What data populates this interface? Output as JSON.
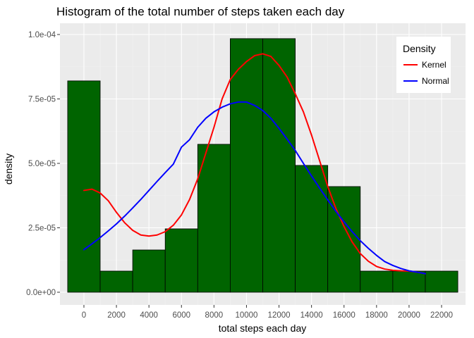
{
  "chart_data": {
    "type": "bar",
    "title": "Histogram of the total number of steps taken each day",
    "xlabel": "total steps each day",
    "ylabel": "density",
    "xlim": [
      -1000,
      23000
    ],
    "ylim": [
      0,
      0.0001
    ],
    "x_ticks": [
      0,
      2000,
      4000,
      6000,
      8000,
      10000,
      12000,
      14000,
      16000,
      18000,
      20000,
      22000
    ],
    "y_ticks": [
      0,
      2.5e-05,
      5e-05,
      7.5e-05,
      0.0001
    ],
    "y_tick_labels": [
      "0.0e+00",
      "2.5e-05",
      "5.0e-05",
      "7.5e-05",
      "1.0e-04"
    ],
    "grid": true,
    "histogram": {
      "bin_edges": [
        -1000,
        1000,
        3000,
        5000,
        7000,
        9000,
        11000,
        13000,
        15000,
        17000,
        19000,
        21000,
        23000
      ],
      "densities": [
        8.2e-05,
        8.2e-06,
        1.64e-05,
        2.46e-05,
        5.74e-05,
        9.84e-05,
        9.84e-05,
        4.92e-05,
        4.1e-05,
        8.2e-06,
        8.2e-06,
        8.2e-06
      ],
      "fill": "#006400",
      "stroke": "#000000"
    },
    "series": [
      {
        "name": "Kernel",
        "color": "#ff0000",
        "x": [
          0,
          500,
          1000,
          1500,
          2000,
          2500,
          3000,
          3500,
          4000,
          4500,
          5000,
          5500,
          6000,
          6500,
          7000,
          7500,
          8000,
          8500,
          9000,
          9500,
          10000,
          10500,
          11000,
          11500,
          12000,
          12500,
          13000,
          13500,
          14000,
          14500,
          15000,
          15500,
          16000,
          16500,
          17000,
          17500,
          18000,
          18500,
          19000,
          19500,
          20000,
          20500,
          21000
        ],
        "y": [
          3.95e-05,
          4e-05,
          3.85e-05,
          3.55e-05,
          3.1e-05,
          2.7e-05,
          2.4e-05,
          2.22e-05,
          2.18e-05,
          2.22e-05,
          2.35e-05,
          2.6e-05,
          3e-05,
          3.6e-05,
          4.4e-05,
          5.4e-05,
          6.4e-05,
          7.5e-05,
          8.25e-05,
          8.65e-05,
          8.95e-05,
          9.18e-05,
          9.25e-05,
          9.15e-05,
          8.8e-05,
          8.35e-05,
          7.7e-05,
          7e-05,
          6.1e-05,
          5.1e-05,
          4.1e-05,
          3.25e-05,
          2.55e-05,
          1.95e-05,
          1.5e-05,
          1.2e-05,
          1e-05,
          9e-06,
          8.5e-06,
          8.3e-06,
          8.2e-06,
          7.8e-06,
          7.2e-06
        ]
      },
      {
        "name": "Normal",
        "color": "#0000ff",
        "x": [
          0,
          500,
          1000,
          1500,
          2000,
          2500,
          3000,
          3500,
          4000,
          4500,
          5000,
          5500,
          6000,
          6500,
          7000,
          7500,
          8000,
          8500,
          9000,
          9500,
          10000,
          10500,
          11000,
          11500,
          12000,
          12500,
          13000,
          13500,
          14000,
          14500,
          15000,
          15500,
          16000,
          16500,
          17000,
          17500,
          18000,
          18500,
          19000,
          19500,
          20000,
          20500,
          21000
        ],
        "y": [
          1.65e-05,
          1.88e-05,
          2.12e-05,
          2.38e-05,
          2.65e-05,
          2.95e-05,
          3.27e-05,
          3.6e-05,
          3.95e-05,
          4.3e-05,
          4.64e-05,
          4.97e-05,
          5.63e-05,
          5.92e-05,
          6.4e-05,
          6.75e-05,
          7e-05,
          7.18e-05,
          7.31e-05,
          7.38e-05,
          7.38e-05,
          7.25e-05,
          7.05e-05,
          6.75e-05,
          6.36e-05,
          5.94e-05,
          5.5e-05,
          5e-05,
          4.51e-05,
          4.04e-05,
          3.58e-05,
          3.14e-05,
          2.73e-05,
          2.35e-05,
          2e-05,
          1.7e-05,
          1.43e-05,
          1.19e-05,
          1.04e-05,
          9.2e-06,
          8.3e-06,
          7.8e-06,
          7.2e-06
        ]
      }
    ],
    "legend": {
      "title": "Density",
      "placement": "top-right",
      "items": [
        "Kernel",
        "Normal"
      ]
    },
    "colors": {
      "panel_background": "#ebebeb",
      "grid_major": "#ffffff",
      "grid_minor": "#f2f2f2"
    }
  }
}
